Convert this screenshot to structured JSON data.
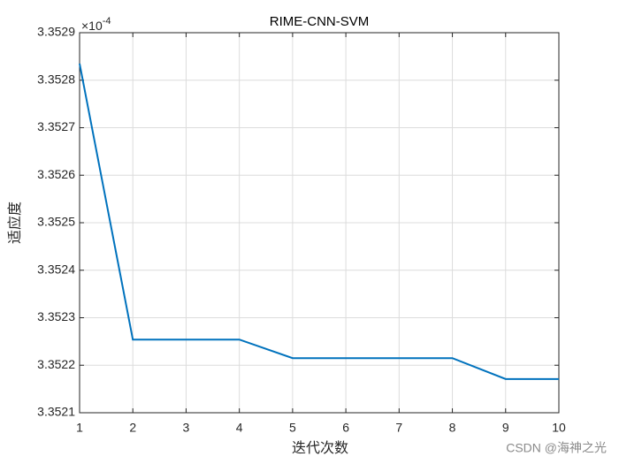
{
  "chart_data": {
    "type": "line",
    "title": "RIME-CNN-SVM",
    "x_label": "迭代次数",
    "y_label": "适应度",
    "y_multiplier": {
      "base": "×10",
      "exponent": "-4"
    },
    "x": [
      1,
      2,
      3,
      4,
      5,
      6,
      7,
      8,
      9,
      10
    ],
    "series": [
      {
        "name": "fitness",
        "color": "#0072bd",
        "values": [
          3.352835,
          3.352254,
          3.352254,
          3.352254,
          3.352215,
          3.352215,
          3.352215,
          3.352215,
          3.352171,
          3.352171
        ]
      }
    ],
    "xlim": [
      1,
      10
    ],
    "xticks": [
      1,
      2,
      3,
      4,
      5,
      6,
      7,
      8,
      9,
      10
    ],
    "ylim": [
      3.3521,
      3.3529
    ],
    "yticks": [
      3.3521,
      3.3522,
      3.3523,
      3.3524,
      3.3525,
      3.3526,
      3.3527,
      3.3528,
      3.3529
    ],
    "grid": true,
    "watermark": "CSDN @海神之光"
  }
}
